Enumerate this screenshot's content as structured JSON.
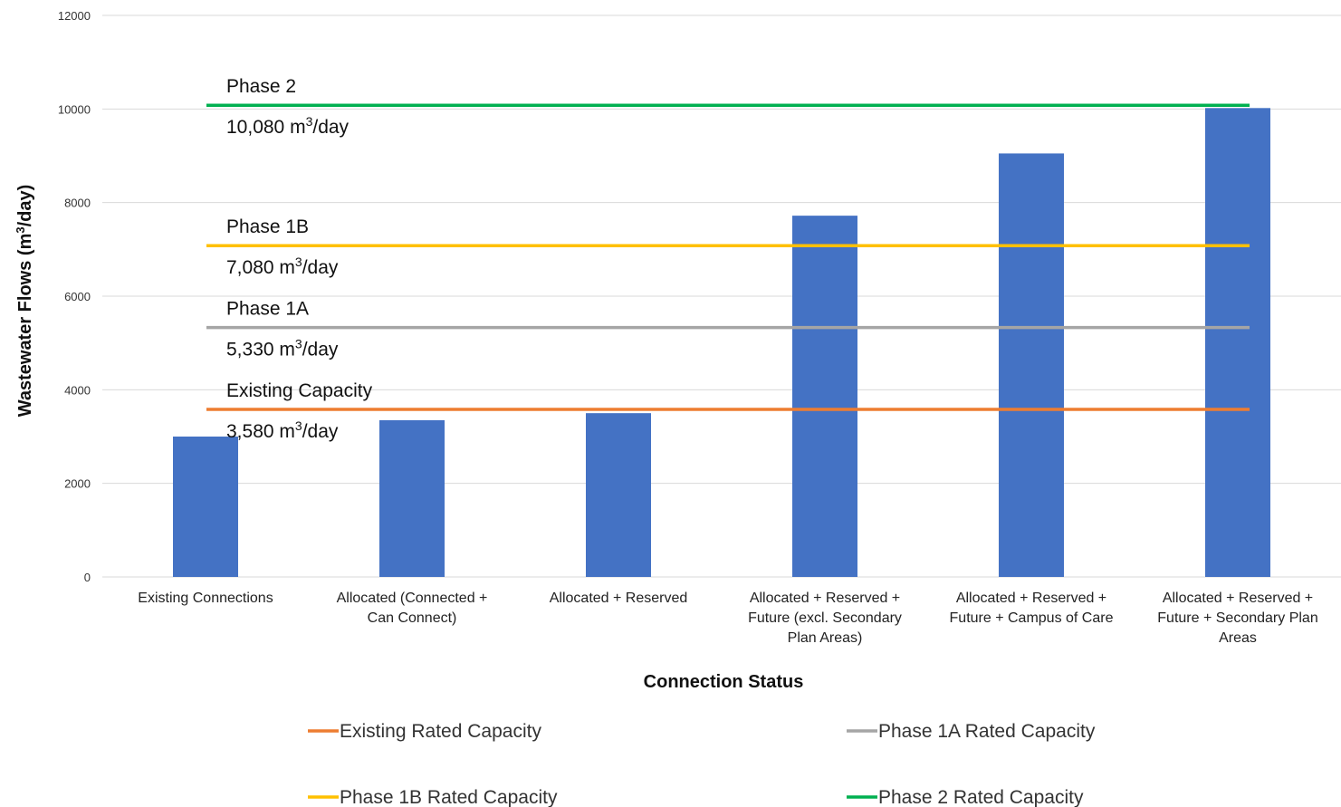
{
  "chart_data": {
    "type": "bar",
    "xlabel": "Connection Status",
    "ylabel_main": "Wastewater Flows (m",
    "ylabel_sup": "3",
    "ylabel_tail": "/day)",
    "ylim": [
      0,
      12000
    ],
    "yticks": [
      "0",
      "2000",
      "4000",
      "6000",
      "8000",
      "10000",
      "12000"
    ],
    "grid": true,
    "bar_color": "#4472c4",
    "categories": [
      [
        "Existing Connections"
      ],
      [
        "Allocated (Connected +",
        "Can Connect)"
      ],
      [
        "Allocated + Reserved"
      ],
      [
        "Allocated + Reserved +",
        "Future (excl. Secondary",
        "Plan Areas)"
      ],
      [
        "Allocated + Reserved +",
        "Future + Campus of Care"
      ],
      [
        "Allocated + Reserved +",
        "Future + Secondary Plan",
        "Areas"
      ]
    ],
    "values": [
      3000,
      3350,
      3500,
      7720,
      9050,
      10020
    ],
    "reference_lines": [
      {
        "name": "Existing Rated Capacity",
        "value": 3580,
        "color": "#ed7d31",
        "label": "Existing Capacity",
        "value_label": "3,580 m",
        "sup": "3",
        "unit": "/day"
      },
      {
        "name": "Phase 1A Rated Capacity",
        "value": 5330,
        "color": "#a5a5a5",
        "label": "Phase 1A",
        "value_label": "5,330 m",
        "sup": "3",
        "unit": "/day"
      },
      {
        "name": "Phase 1B Rated Capacity",
        "value": 7080,
        "color": "#ffc000",
        "label": "Phase 1B",
        "value_label": "7,080 m",
        "sup": "3",
        "unit": "/day"
      },
      {
        "name": "Phase 2 Rated Capacity",
        "value": 10080,
        "color": "#00b050",
        "label": "Phase 2",
        "value_label": "10,080 m",
        "sup": "3",
        "unit": "/day"
      }
    ],
    "legend_position": "bottom"
  }
}
